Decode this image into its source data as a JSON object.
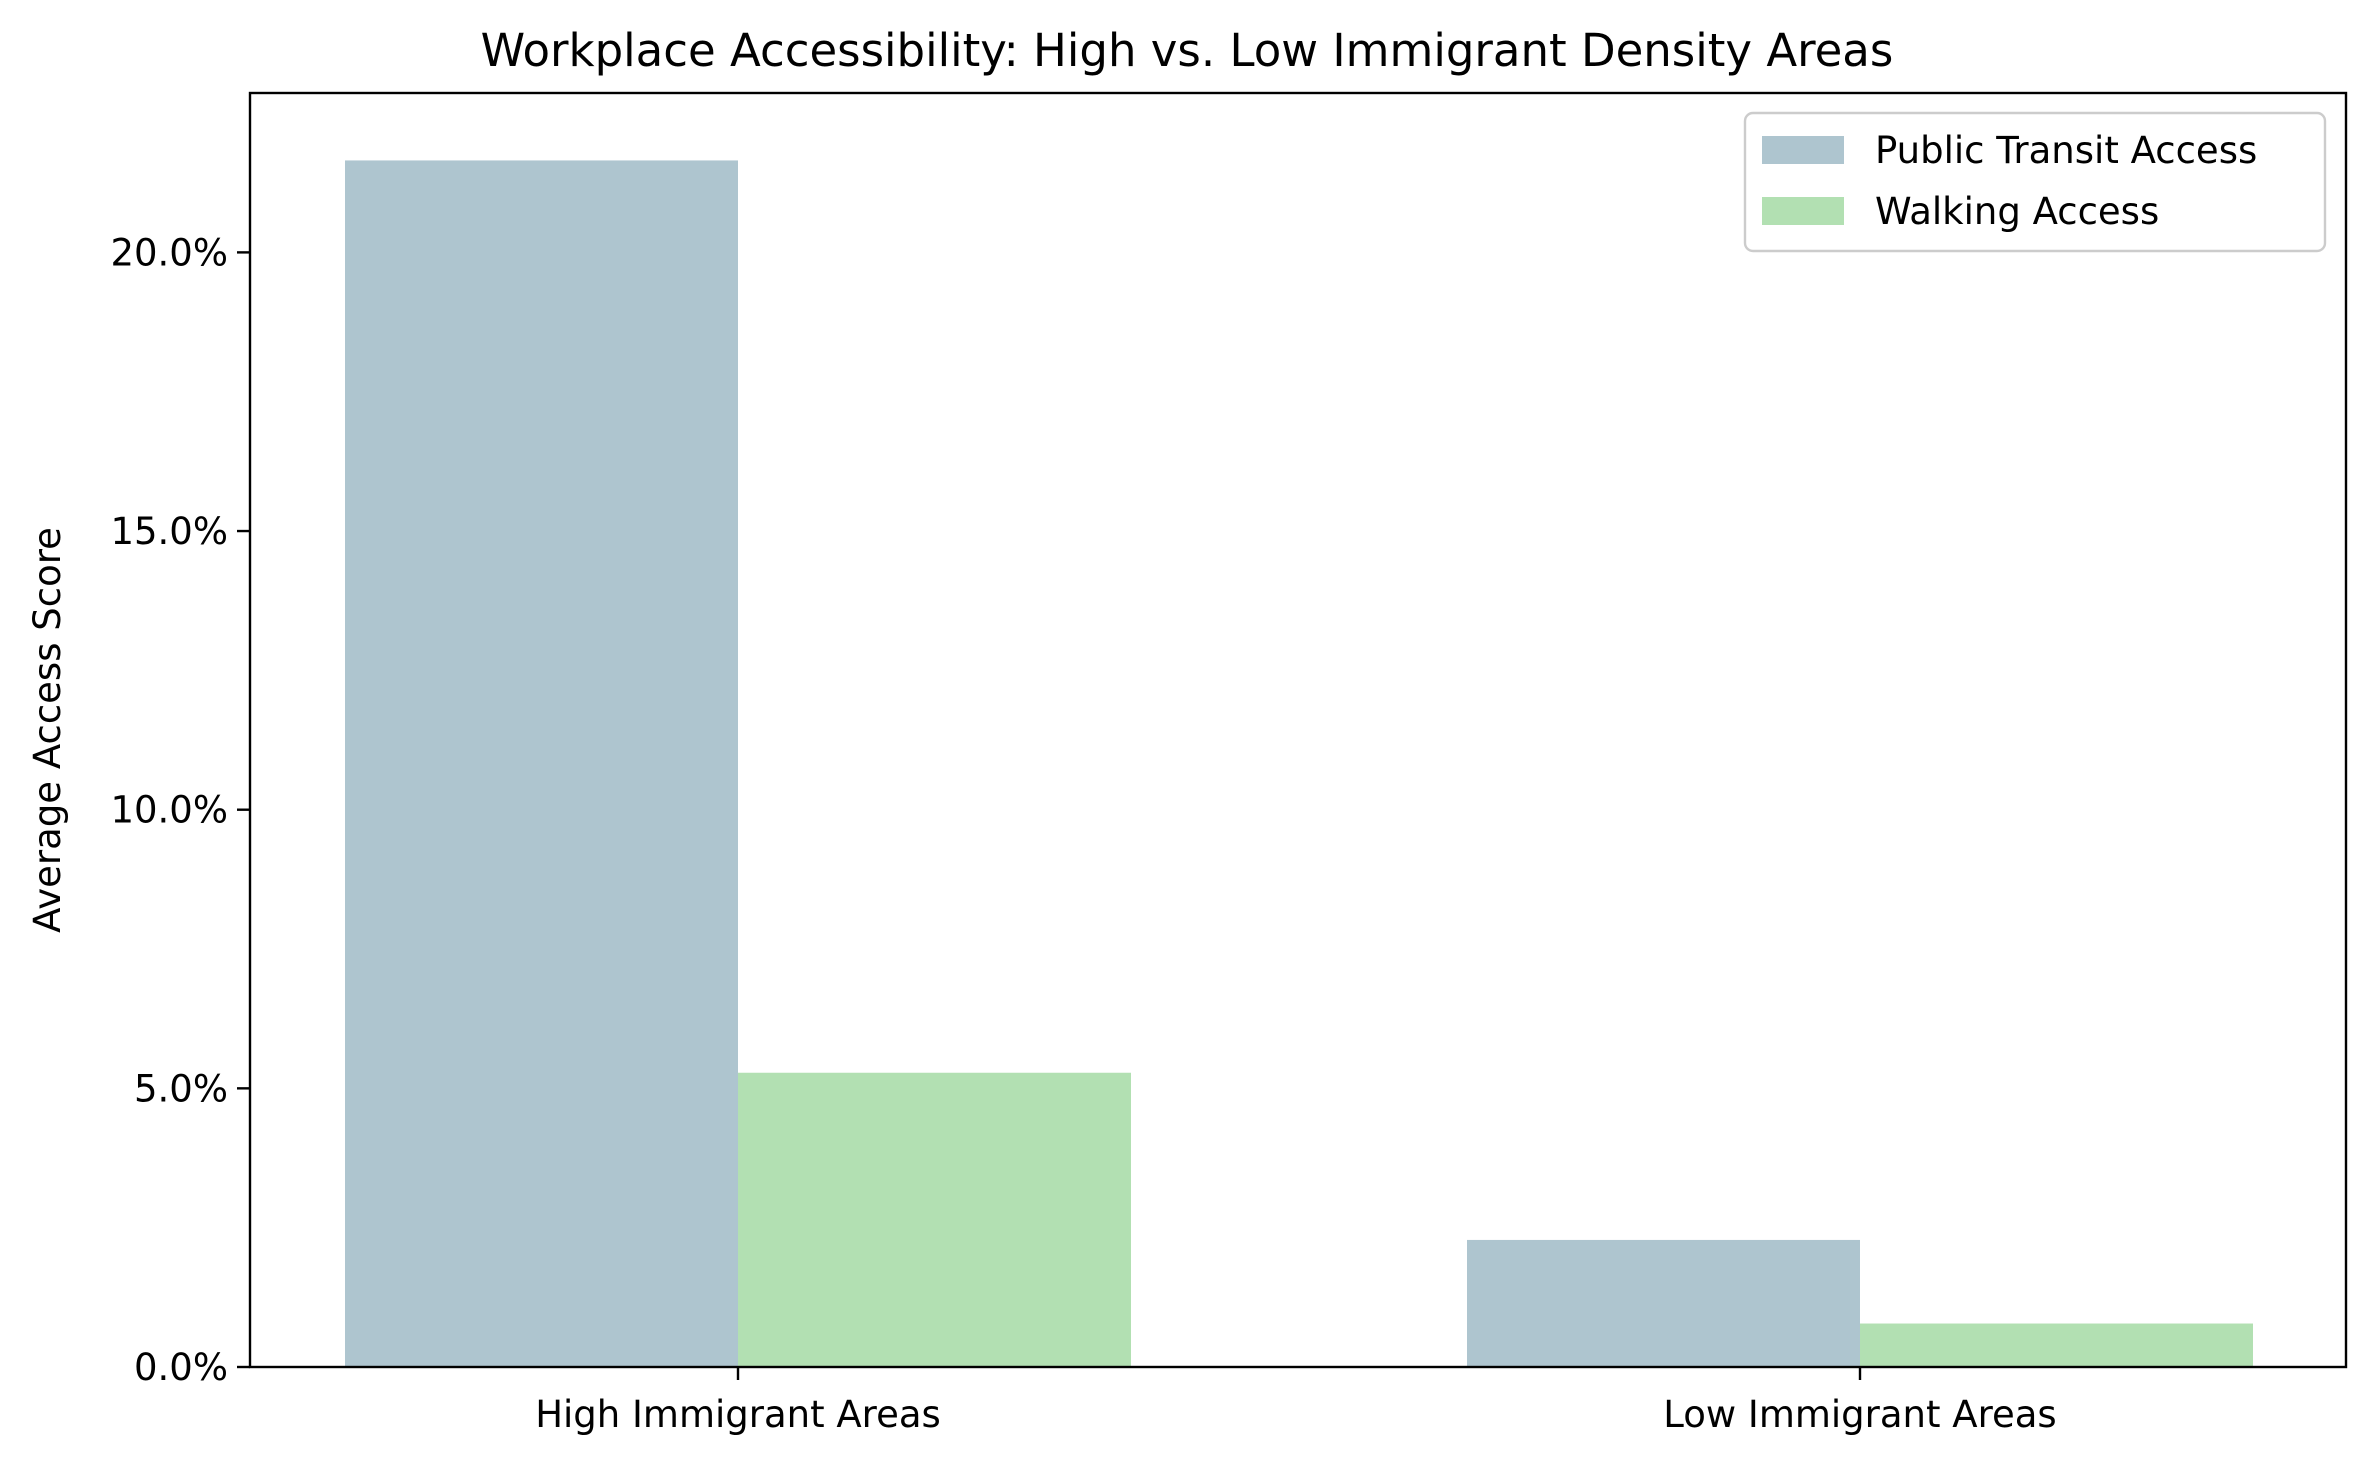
{
  "chart_data": {
    "type": "bar",
    "title": "Workplace Accessibility: High vs. Low Immigrant Density Areas",
    "xlabel": "",
    "ylabel": "Average Access Score",
    "categories": [
      "High Immigrant Areas",
      "Low Immigrant Areas"
    ],
    "series": [
      {
        "name": "Public Transit Access",
        "values": [
          0.2165,
          0.0228
        ],
        "color": "#aec5cf"
      },
      {
        "name": "Walking Access",
        "values": [
          0.0528,
          0.0078
        ],
        "color": "#b2e0b2"
      }
    ],
    "ylim": [
      0,
      0.2286
    ],
    "yticks": [
      0,
      0.05,
      0.1,
      0.15,
      0.2
    ],
    "ytick_labels": [
      "0.0%",
      "5.0%",
      "10.0%",
      "15.0%",
      "20.0%"
    ],
    "ytick_format": "percent",
    "grid": false,
    "legend_position": "top-right"
  }
}
